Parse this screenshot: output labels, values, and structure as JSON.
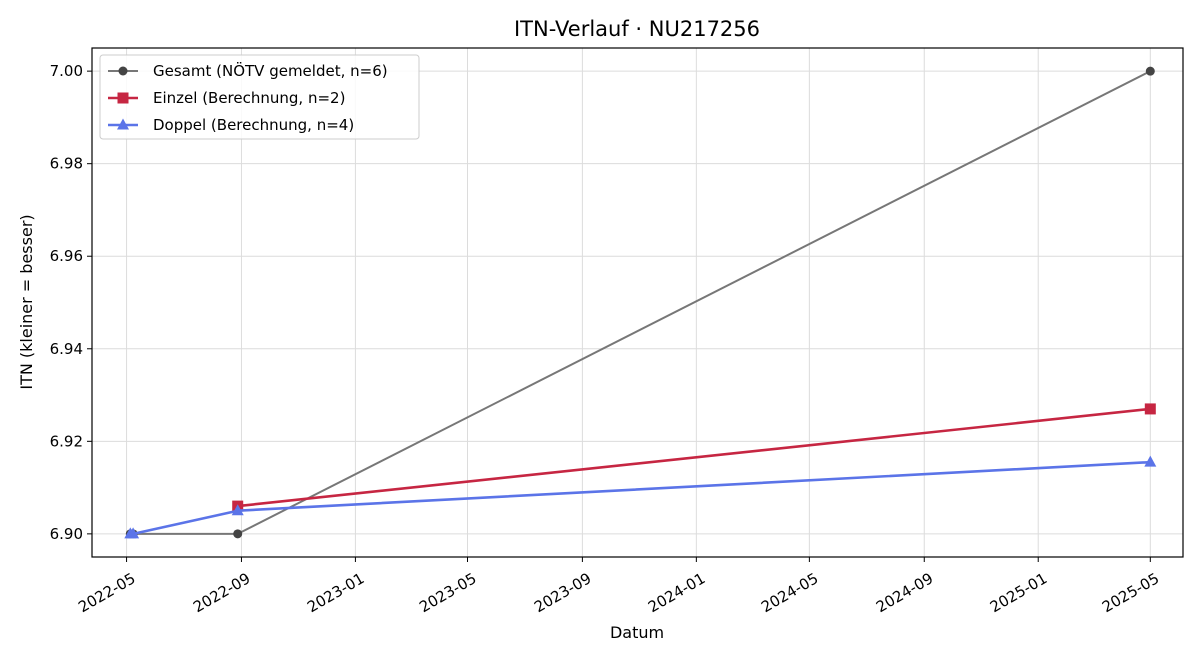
{
  "chart_data": {
    "type": "line",
    "title": "ITN-Verlauf · NU217256",
    "xlabel": "Datum",
    "ylabel": "ITN  (kleiner = besser)",
    "x_ticks": [
      "2022-05",
      "2022-09",
      "2023-01",
      "2023-05",
      "2023-09",
      "2024-01",
      "2024-05",
      "2024-09",
      "2025-01",
      "2025-05"
    ],
    "y_ticks": [
      "6.90",
      "6.92",
      "6.94",
      "6.96",
      "6.98",
      "7.00"
    ],
    "xlim": [
      "2022-03-25",
      "2025-06-05"
    ],
    "ylim": [
      6.895,
      7.005
    ],
    "grid": true,
    "legend_position": "top-left",
    "series": [
      {
        "name": "Gesamt (NÖTV gemeldet, n=6)",
        "color": "#777777",
        "marker": "circle",
        "points": [
          {
            "x": "2022-05-05",
            "y": 6.9
          },
          {
            "x": "2022-05-08",
            "y": 6.9
          },
          {
            "x": "2022-08-28",
            "y": 6.9
          },
          {
            "x": "2025-05-01",
            "y": 7.0
          }
        ]
      },
      {
        "name": "Einzel (Berechnung, n=2)",
        "color": "#c62642",
        "marker": "square",
        "points": [
          {
            "x": "2022-08-28",
            "y": 6.906
          },
          {
            "x": "2025-05-01",
            "y": 6.927
          }
        ]
      },
      {
        "name": "Doppel (Berechnung, n=4)",
        "color": "#5b74e8",
        "marker": "triangle",
        "points": [
          {
            "x": "2022-05-05",
            "y": 6.9
          },
          {
            "x": "2022-05-08",
            "y": 6.9
          },
          {
            "x": "2022-08-28",
            "y": 6.905
          },
          {
            "x": "2025-05-01",
            "y": 6.9155
          }
        ]
      }
    ]
  }
}
